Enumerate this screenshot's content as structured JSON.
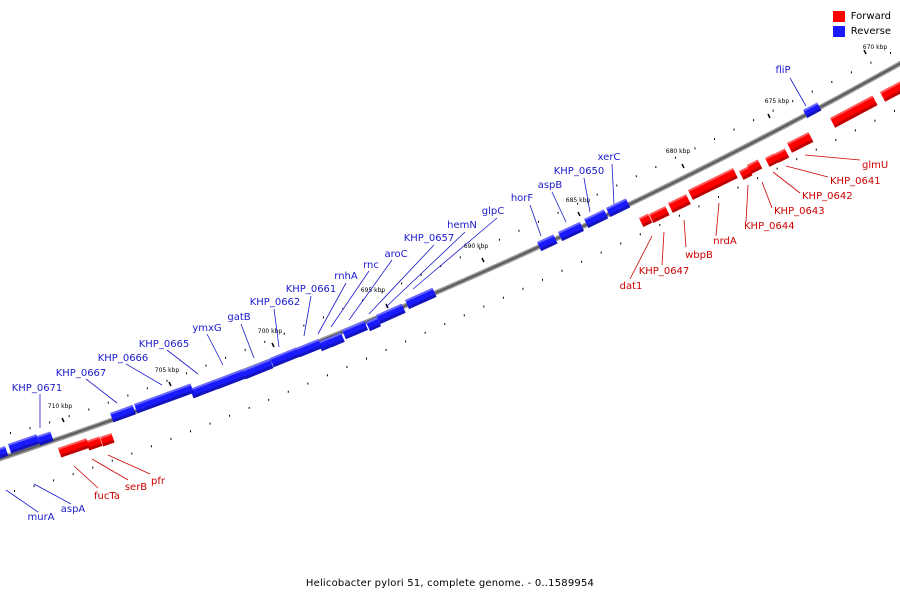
{
  "colors": {
    "forward": "#ff0000",
    "reverse": "#1a1aff",
    "forward_label": "#cc0000",
    "reverse_label": "#1a1acc"
  },
  "legend": {
    "forward": "Forward",
    "reverse": "Reverse"
  },
  "caption": "Helicobacter pylori 51, complete genome. - 0..1589954",
  "ticks": [
    {
      "label": "670 kbp",
      "pos": 670
    },
    {
      "label": "675 kbp",
      "pos": 675
    },
    {
      "label": "680 kbp",
      "pos": 680
    },
    {
      "label": "685 kbp",
      "pos": 685
    },
    {
      "label": "690 kbp",
      "pos": 690
    },
    {
      "label": "695 kbp",
      "pos": 695
    },
    {
      "label": "700 kbp",
      "pos": 700
    },
    {
      "label": "705 kbp",
      "pos": 705
    },
    {
      "label": "710 kbp",
      "pos": 710
    }
  ],
  "reverse_genes": [
    "fliP",
    "xerC",
    "KHP_0650",
    "aspB",
    "horF",
    "glpC",
    "hemN",
    "KHP_0657",
    "aroC",
    "rnc",
    "rnhA",
    "KHP_0661",
    "KHP_0662",
    "gatB",
    "ymxG",
    "KHP_0665",
    "KHP_0666",
    "KHP_0667",
    "KHP_0671",
    "aspA",
    "murA"
  ],
  "forward_genes": [
    "glmU",
    "KHP_0641",
    "KHP_0642",
    "KHP_0643",
    "KHP_0644",
    "nrdA",
    "wbpB",
    "KHP_0647",
    "dat1",
    "pfr",
    "serB",
    "fucTa"
  ]
}
